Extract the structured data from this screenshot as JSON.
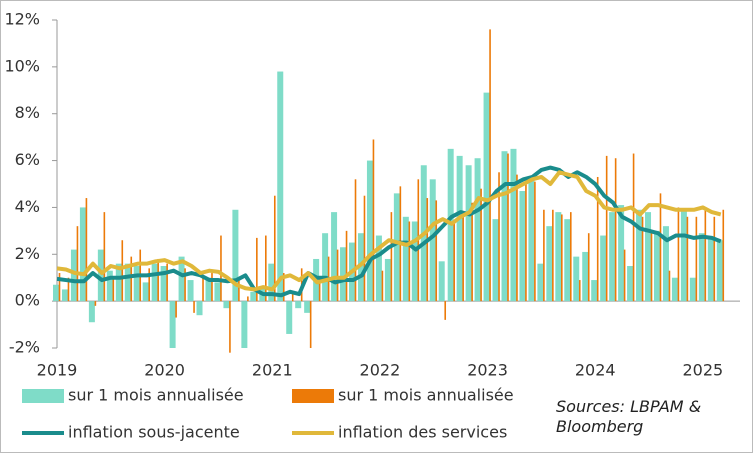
{
  "chart_data": {
    "type": "bar_line",
    "source": "Sources: LBPAM & Bloomberg",
    "categories": [
      "2019",
      null,
      null,
      null,
      null,
      null,
      null,
      null,
      null,
      null,
      null,
      null,
      "2020",
      null,
      null,
      null,
      null,
      null,
      null,
      null,
      null,
      null,
      null,
      null,
      "2021",
      null,
      null,
      null,
      null,
      null,
      null,
      null,
      null,
      null,
      null,
      null,
      "2022",
      null,
      null,
      null,
      null,
      null,
      null,
      null,
      null,
      null,
      null,
      null,
      "2023",
      null,
      null,
      null,
      null,
      null,
      null,
      null,
      null,
      null,
      null,
      null,
      "2024",
      null,
      null,
      null,
      null,
      null,
      null,
      null,
      null,
      null,
      null,
      null,
      "2025",
      null,
      null
    ],
    "ylim": [
      -2,
      12
    ],
    "yticks": [
      {
        "value": -2,
        "label": "-2%"
      },
      {
        "value": 0,
        "label": "0%"
      },
      {
        "value": 2,
        "label": "2%"
      },
      {
        "value": 4,
        "label": "4%"
      },
      {
        "value": 6,
        "label": "6%"
      },
      {
        "value": 8,
        "label": "8%"
      },
      {
        "value": 10,
        "label": "10%"
      },
      {
        "value": 12,
        "label": "12%"
      }
    ],
    "grid": false,
    "series": [
      {
        "name": "sur 1 mois annualisée",
        "kind": "bar",
        "color": "#7fdcc8",
        "values": [
          0.7,
          0.5,
          2.2,
          4.0,
          -0.9,
          2.2,
          1.3,
          1.6,
          1.6,
          1.5,
          0.8,
          1.6,
          1.5,
          -2.0,
          1.9,
          0.9,
          -0.6,
          1.0,
          0.8,
          -0.3,
          3.9,
          -2.0,
          0.4,
          0.6,
          1.6,
          9.8,
          -1.4,
          -0.3,
          -0.5,
          1.8,
          2.9,
          3.8,
          2.3,
          2.5,
          2.9,
          6.0,
          2.8,
          1.8,
          4.6,
          3.6,
          3.4,
          5.8,
          5.2,
          1.7,
          6.5,
          6.2,
          5.8,
          6.1,
          8.9,
          3.5,
          6.4,
          6.5,
          4.7,
          5.3,
          1.6,
          3.2,
          3.8,
          3.5,
          1.9,
          2.1,
          0.9,
          2.8,
          3.8,
          4.1,
          1.5,
          3.9,
          3.8,
          3.0,
          3.2,
          1.0,
          3.9,
          1.0,
          2.9,
          2.7,
          2.6
        ]
      },
      {
        "name": "sur 1 mois annualisée",
        "kind": "bar",
        "color": "#ec7a08",
        "values": [
          1.2,
          1.0,
          3.2,
          4.4,
          -0.2,
          3.8,
          1.0,
          2.6,
          1.9,
          2.2,
          1.4,
          1.8,
          1.6,
          -0.7,
          1.4,
          -0.5,
          1.0,
          1.2,
          2.8,
          -2.2,
          1.0,
          0.2,
          2.7,
          2.8,
          4.5,
          1.2,
          0.3,
          1.4,
          -2.0,
          1.0,
          1.9,
          2.2,
          3.0,
          5.2,
          4.5,
          6.9,
          1.3,
          3.8,
          4.9,
          3.4,
          5.2,
          4.4,
          4.3,
          -0.8,
          3.4,
          3.7,
          4.2,
          4.8,
          11.6,
          5.5,
          6.3,
          5.4,
          5.0,
          5.1,
          3.9,
          3.9,
          3.7,
          3.8,
          0.9,
          2.9,
          5.3,
          6.2,
          6.1,
          2.2,
          6.3,
          3.6,
          3.0,
          4.6,
          1.3,
          4.0,
          3.6,
          3.6,
          4.0,
          3.6,
          3.9
        ]
      },
      {
        "name": "inflation sous-jacente",
        "kind": "line",
        "color": "#1a8c8c",
        "values": [
          0.95,
          0.9,
          0.85,
          0.85,
          1.2,
          0.9,
          1.0,
          1.0,
          1.05,
          1.1,
          1.1,
          1.15,
          1.2,
          1.3,
          1.1,
          1.2,
          1.1,
          0.9,
          0.9,
          0.85,
          0.9,
          1.1,
          0.5,
          0.3,
          0.3,
          0.25,
          0.4,
          0.3,
          1.2,
          1.0,
          1.0,
          0.8,
          0.9,
          0.9,
          1.1,
          1.8,
          2.0,
          2.3,
          2.5,
          2.5,
          2.2,
          2.5,
          2.8,
          3.2,
          3.6,
          3.8,
          3.7,
          3.9,
          4.2,
          4.7,
          5.0,
          5.0,
          5.2,
          5.3,
          5.6,
          5.7,
          5.6,
          5.3,
          5.5,
          5.3,
          5.0,
          4.5,
          4.2,
          3.6,
          3.4,
          3.1,
          3.0,
          2.9,
          2.6,
          2.8,
          2.8,
          2.7,
          2.75,
          2.7,
          2.55
        ]
      },
      {
        "name": "inflation des services",
        "kind": "line",
        "color": "#e0b83a",
        "values": [
          1.4,
          1.35,
          1.2,
          1.15,
          1.6,
          1.2,
          1.5,
          1.4,
          1.5,
          1.6,
          1.6,
          1.7,
          1.75,
          1.6,
          1.7,
          1.5,
          1.2,
          1.3,
          1.25,
          1.0,
          0.7,
          0.55,
          0.5,
          0.6,
          0.5,
          1.0,
          1.1,
          0.9,
          1.2,
          0.8,
          0.9,
          1.0,
          1.0,
          1.3,
          1.6,
          2.0,
          2.3,
          2.6,
          2.5,
          2.4,
          2.6,
          2.9,
          3.3,
          3.5,
          3.3,
          3.6,
          3.8,
          4.4,
          4.3,
          4.5,
          4.6,
          4.8,
          5.0,
          5.2,
          5.3,
          5.0,
          5.5,
          5.4,
          5.3,
          4.7,
          4.5,
          4.0,
          3.9,
          3.9,
          4.0,
          3.7,
          4.1,
          4.1,
          4.0,
          3.9,
          3.9,
          3.9,
          4.0,
          3.8,
          3.7
        ]
      }
    ]
  }
}
